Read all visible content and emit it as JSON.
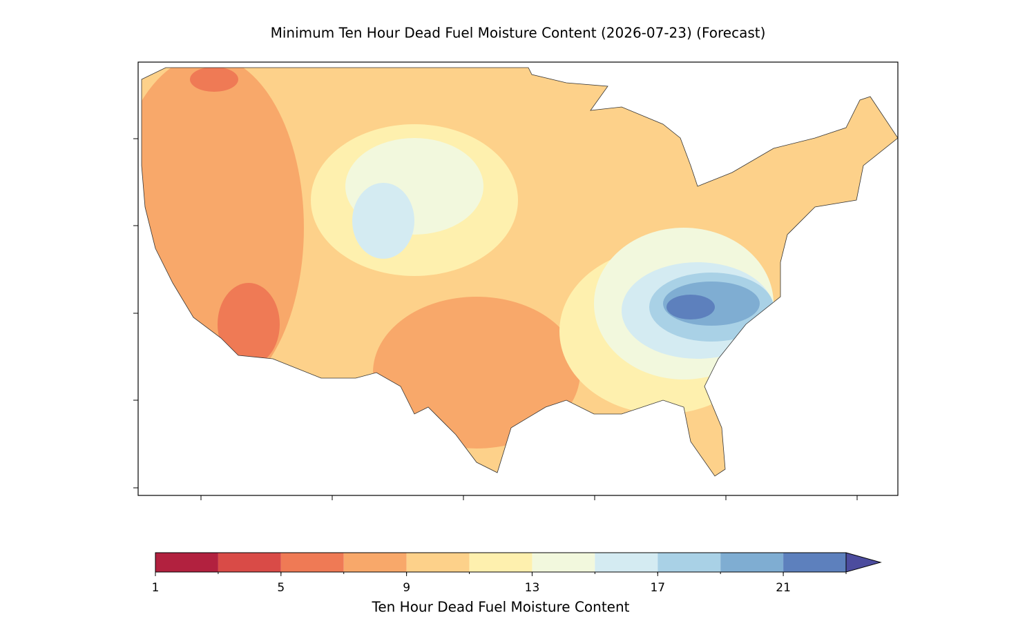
{
  "title": "Minimum Ten Hour Dead Fuel Moisture Content (2026-07-23) (Forecast)",
  "colorbar": {
    "label": "Ten Hour Dead Fuel Moisture Content",
    "levels": [
      1,
      3,
      5,
      7,
      9,
      11,
      13,
      15,
      17,
      19,
      21,
      23
    ],
    "colors": [
      "#b2213f",
      "#d94b47",
      "#ef7a55",
      "#f8a86a",
      "#fdd18a",
      "#fef0ae",
      "#f2f8dd",
      "#d4ebf2",
      "#a9d1e6",
      "#7fadd2",
      "#5d80bd"
    ],
    "extend": "max",
    "extend_color": "#4c4c9e",
    "ticks": [
      1,
      5,
      9,
      13,
      17,
      21
    ]
  }
}
